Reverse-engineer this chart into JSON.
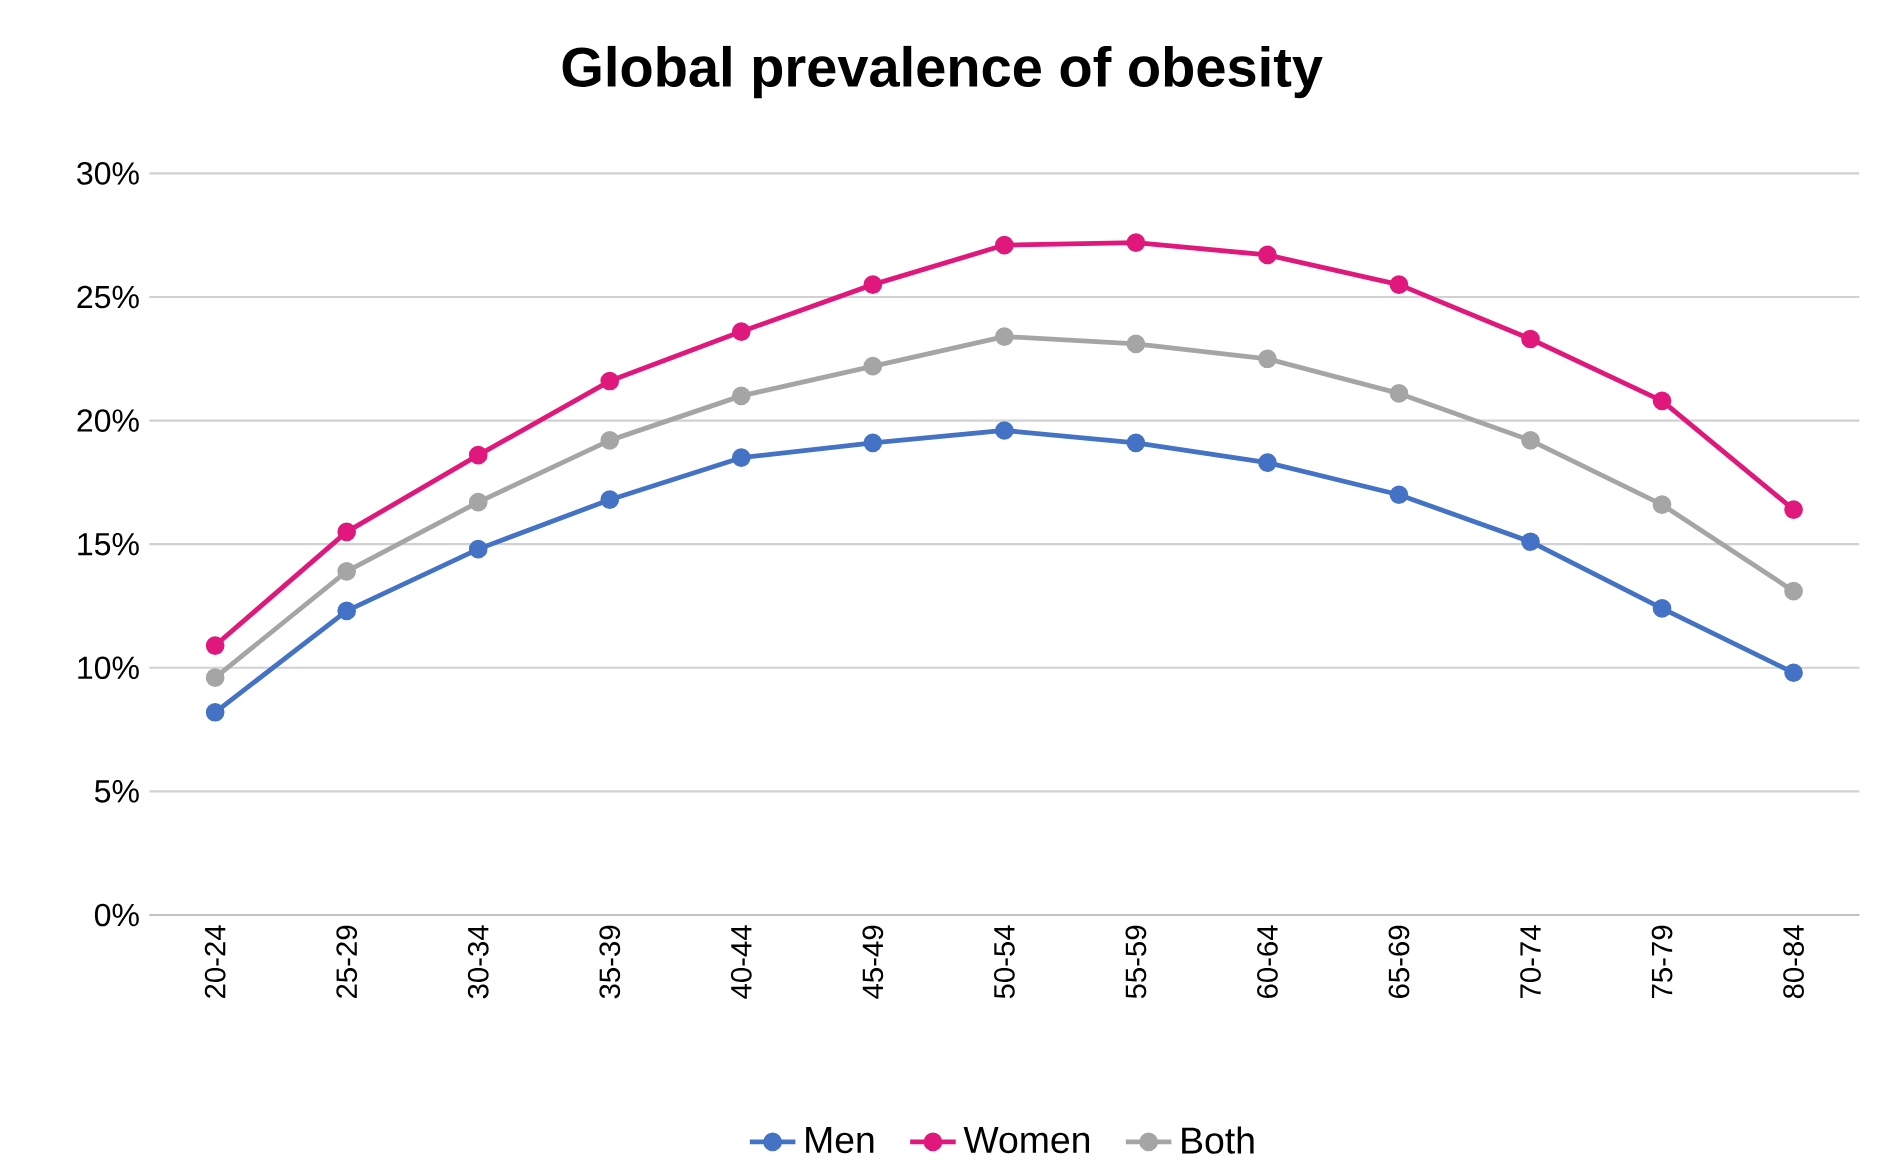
{
  "chart_data": {
    "type": "line",
    "title": "Global prevalence of obesity",
    "categories": [
      "20-24",
      "25-29",
      "30-34",
      "35-39",
      "40-44",
      "45-49",
      "50-54",
      "55-59",
      "60-64",
      "65-69",
      "70-74",
      "75-79",
      "80-84"
    ],
    "series": [
      {
        "name": "Men",
        "color": "#4472c4",
        "values": [
          8.2,
          12.3,
          14.8,
          16.8,
          18.5,
          19.1,
          19.6,
          19.1,
          18.3,
          17.0,
          15.1,
          12.4,
          9.8
        ]
      },
      {
        "name": "Women",
        "color": "#e0187c",
        "values": [
          10.9,
          15.5,
          18.6,
          21.6,
          23.6,
          25.5,
          27.1,
          27.2,
          26.7,
          25.5,
          23.3,
          20.8,
          16.4
        ]
      },
      {
        "name": "Both",
        "color": "#a5a5a5",
        "values": [
          9.6,
          13.9,
          16.7,
          19.2,
          21.0,
          22.2,
          23.4,
          23.1,
          22.5,
          21.1,
          19.2,
          16.6,
          13.1
        ]
      }
    ],
    "ylim": [
      0,
      30
    ],
    "yticks": [
      {
        "value": 0,
        "label": "0%"
      },
      {
        "value": 5,
        "label": "5%"
      },
      {
        "value": 10,
        "label": "10%"
      },
      {
        "value": 15,
        "label": "15%"
      },
      {
        "value": 20,
        "label": "20%"
      },
      {
        "value": 25,
        "label": "25%"
      },
      {
        "value": 30,
        "label": "30%"
      }
    ],
    "grid": "y",
    "legend": "bottom",
    "marker": "circle"
  }
}
